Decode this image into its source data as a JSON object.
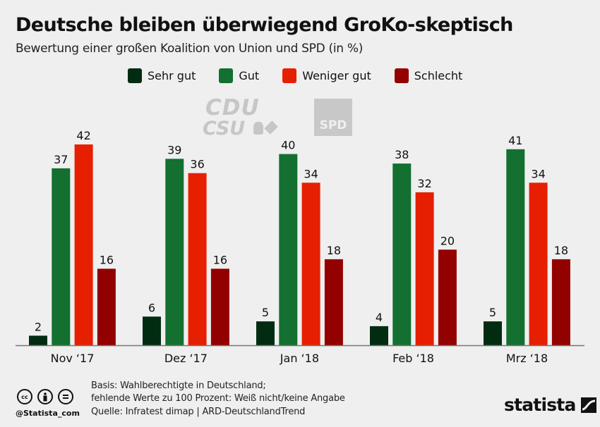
{
  "header": {
    "title": "Deutsche bleiben überwiegend GroKo-skeptisch",
    "subtitle": "Bewertung einer großen Koalition von Union und SPD (in %)"
  },
  "logos": {
    "cdu": "CDU",
    "csu": "CSU",
    "spd": "SPD"
  },
  "footer": {
    "handle": "@Statista_com",
    "note_line1": "Basis: Wahlberechtigte in Deutschland;",
    "note_line2": "fehlende Werte zu 100 Prozent: Weiß nicht/keine Angabe",
    "source": "Quelle: Infratest dimap | ARD-DeutschlandTrend",
    "brand": "statista",
    "cc_icons": [
      "cc-icon",
      "attribution-icon",
      "no-derivatives-icon"
    ]
  },
  "chart_data": {
    "type": "bar",
    "title": "Deutsche bleiben überwiegend GroKo-skeptisch",
    "subtitle": "Bewertung einer großen Koalition von Union und SPD (in %)",
    "xlabel": "",
    "ylabel": "",
    "ylim": [
      0,
      42
    ],
    "grid": false,
    "legend_position": "top-center",
    "categories": [
      "Nov ‘17",
      "Dez ‘17",
      "Jan ‘18",
      "Feb ‘18",
      "Mrz ‘18"
    ],
    "series": [
      {
        "name": "Sehr gut",
        "color": "#022c12",
        "values": [
          2,
          6,
          5,
          4,
          5
        ]
      },
      {
        "name": "Gut",
        "color": "#137030",
        "values": [
          37,
          39,
          40,
          38,
          41
        ]
      },
      {
        "name": "Weniger gut",
        "color": "#e61f00",
        "values": [
          42,
          36,
          34,
          32,
          34
        ]
      },
      {
        "name": "Schlecht",
        "color": "#930000",
        "values": [
          16,
          16,
          18,
          20,
          18
        ]
      }
    ]
  }
}
